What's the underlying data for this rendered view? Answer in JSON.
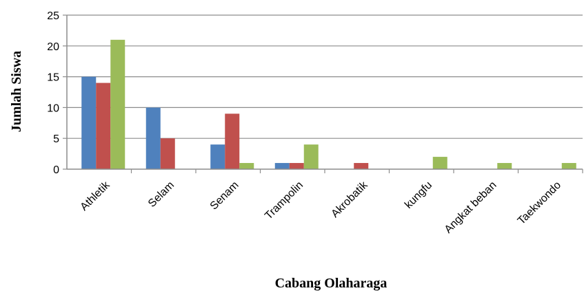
{
  "chart_data": {
    "type": "bar",
    "title": "",
    "xlabel": "Cabang Olaharaga",
    "ylabel": "Jumlah Siswa",
    "ylim": [
      0,
      25
    ],
    "yticks": [
      0,
      5,
      10,
      15,
      20,
      25
    ],
    "grid": true,
    "legend": "none",
    "categories": [
      "Athletik",
      "Selam",
      "Senam",
      "Trampolin",
      "Akrobatik",
      "kungfu",
      "Angkat beban",
      "Taekwondo"
    ],
    "series": [
      {
        "color": "#4f81bd",
        "values": [
          15,
          10,
          4,
          1,
          0,
          0,
          0,
          0
        ]
      },
      {
        "color": "#c0504d",
        "values": [
          14,
          5,
          9,
          1,
          1,
          0,
          0,
          0
        ]
      },
      {
        "color": "#9bbb59",
        "values": [
          21,
          0,
          1,
          4,
          0,
          2,
          1,
          1
        ]
      }
    ]
  }
}
